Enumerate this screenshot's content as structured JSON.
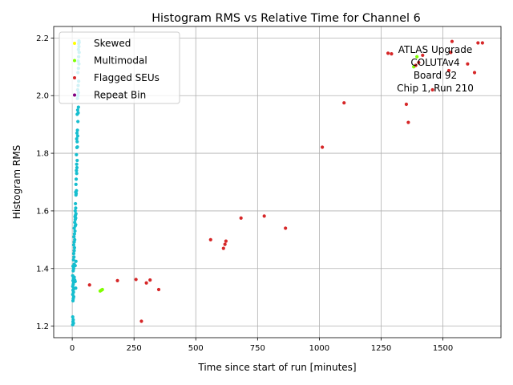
{
  "chart_data": {
    "type": "scatter",
    "title": "Histogram RMS vs Relative Time for Channel 6",
    "xlabel": "Time since start of run [minutes]",
    "ylabel": "Histogram RMS",
    "xlim": [
      -75,
      1735
    ],
    "ylim": [
      1.16,
      2.24
    ],
    "xticks": [
      0,
      250,
      500,
      750,
      1000,
      1250,
      1500
    ],
    "yticks": [
      1.2,
      1.4,
      1.6,
      1.8,
      2.0,
      2.2
    ],
    "ytick_labels": [
      "1.2",
      "1.4",
      "1.6",
      "1.8",
      "2.0",
      "2.2"
    ],
    "grid": true,
    "legend_position": "top-left",
    "annotation": [
      "ATLAS Upgrade",
      "COLUTAv4",
      "Board 92",
      "Chip 1, Run 210"
    ],
    "series": [
      {
        "name": "Skewed",
        "color": "#ffff00",
        "points": []
      },
      {
        "name": "Multimodal",
        "color": "#7fff00",
        "points": [
          [
            113,
            1.322
          ],
          [
            118,
            1.325
          ],
          [
            122,
            1.327
          ],
          [
            1382,
            2.1
          ],
          [
            1395,
            2.135
          ]
        ]
      },
      {
        "name": "Flagged SEUs",
        "color": "#d62728",
        "points": [
          [
            70,
            1.343
          ],
          [
            183,
            1.358
          ],
          [
            258,
            1.362
          ],
          [
            280,
            1.217
          ],
          [
            300,
            1.35
          ],
          [
            315,
            1.36
          ],
          [
            350,
            1.327
          ],
          [
            560,
            1.5
          ],
          [
            612,
            1.47
          ],
          [
            618,
            1.484
          ],
          [
            622,
            1.495
          ],
          [
            683,
            1.575
          ],
          [
            777,
            1.582
          ],
          [
            863,
            1.54
          ],
          [
            1012,
            1.821
          ],
          [
            1100,
            1.975
          ],
          [
            1278,
            2.147
          ],
          [
            1292,
            2.145
          ],
          [
            1352,
            1.97
          ],
          [
            1360,
            1.907
          ],
          [
            1390,
            2.105
          ],
          [
            1402,
            2.115
          ],
          [
            1418,
            2.14
          ],
          [
            1458,
            2.02
          ],
          [
            1524,
            2.087
          ],
          [
            1532,
            2.15
          ],
          [
            1537,
            2.188
          ],
          [
            1600,
            2.11
          ],
          [
            1628,
            2.08
          ],
          [
            1642,
            2.183
          ],
          [
            1660,
            2.183
          ]
        ]
      },
      {
        "name": "Repeat Bin",
        "color": "#800080",
        "points": []
      },
      {
        "name": "",
        "color": "#17becf",
        "points": [
          [
            2,
            1.205
          ],
          [
            3,
            1.215
          ],
          [
            4,
            1.222
          ],
          [
            2,
            1.232
          ],
          [
            5,
            1.21
          ],
          [
            3,
            1.288
          ],
          [
            4,
            1.295
          ],
          [
            6,
            1.302
          ],
          [
            2,
            1.31
          ],
          [
            5,
            1.318
          ],
          [
            3,
            1.325
          ],
          [
            7,
            1.33
          ],
          [
            2,
            1.338
          ],
          [
            4,
            1.345
          ],
          [
            6,
            1.352
          ],
          [
            3,
            1.358
          ],
          [
            5,
            1.365
          ],
          [
            8,
            1.37
          ],
          [
            2,
            1.375
          ],
          [
            10,
            1.36
          ],
          [
            12,
            1.355
          ],
          [
            14,
            1.332
          ],
          [
            4,
            1.392
          ],
          [
            6,
            1.4
          ],
          [
            3,
            1.408
          ],
          [
            8,
            1.415
          ],
          [
            12,
            1.41
          ],
          [
            15,
            1.425
          ],
          [
            5,
            1.43
          ],
          [
            7,
            1.44
          ],
          [
            6,
            1.452
          ],
          [
            8,
            1.462
          ],
          [
            9,
            1.472
          ],
          [
            6,
            1.482
          ],
          [
            8,
            1.492
          ],
          [
            10,
            1.5
          ],
          [
            7,
            1.51
          ],
          [
            9,
            1.52
          ],
          [
            11,
            1.53
          ],
          [
            8,
            1.54
          ],
          [
            12,
            1.548
          ],
          [
            14,
            1.552
          ],
          [
            10,
            1.56
          ],
          [
            12,
            1.57
          ],
          [
            14,
            1.575
          ],
          [
            11,
            1.58
          ],
          [
            13,
            1.585
          ],
          [
            15,
            1.59
          ],
          [
            12,
            1.6
          ],
          [
            14,
            1.61
          ],
          [
            13,
            1.625
          ],
          [
            15,
            1.655
          ],
          [
            16,
            1.66
          ],
          [
            14,
            1.665
          ],
          [
            17,
            1.67
          ],
          [
            15,
            1.692
          ],
          [
            16,
            1.71
          ],
          [
            18,
            1.73
          ],
          [
            17,
            1.74
          ],
          [
            19,
            1.75
          ],
          [
            18,
            1.762
          ],
          [
            20,
            1.775
          ],
          [
            17,
            1.795
          ],
          [
            19,
            1.82
          ],
          [
            21,
            1.822
          ],
          [
            20,
            1.84
          ],
          [
            18,
            1.85
          ],
          [
            22,
            1.86
          ],
          [
            19,
            1.87
          ],
          [
            21,
            1.88
          ],
          [
            23,
            1.91
          ],
          [
            20,
            1.935
          ],
          [
            24,
            1.94
          ],
          [
            22,
            1.95
          ],
          [
            25,
            1.96
          ],
          [
            21,
            1.99
          ],
          [
            23,
            2.0
          ],
          [
            25,
            2.01
          ],
          [
            22,
            2.02
          ],
          [
            24,
            2.035
          ],
          [
            26,
            2.05
          ],
          [
            23,
            2.08
          ],
          [
            25,
            2.095
          ],
          [
            27,
            2.11
          ],
          [
            24,
            2.12
          ],
          [
            26,
            2.135
          ],
          [
            28,
            2.15
          ],
          [
            25,
            2.16
          ],
          [
            27,
            2.17
          ],
          [
            26,
            2.18
          ],
          [
            28,
            2.185
          ],
          [
            27,
            2.19
          ]
        ]
      }
    ]
  }
}
